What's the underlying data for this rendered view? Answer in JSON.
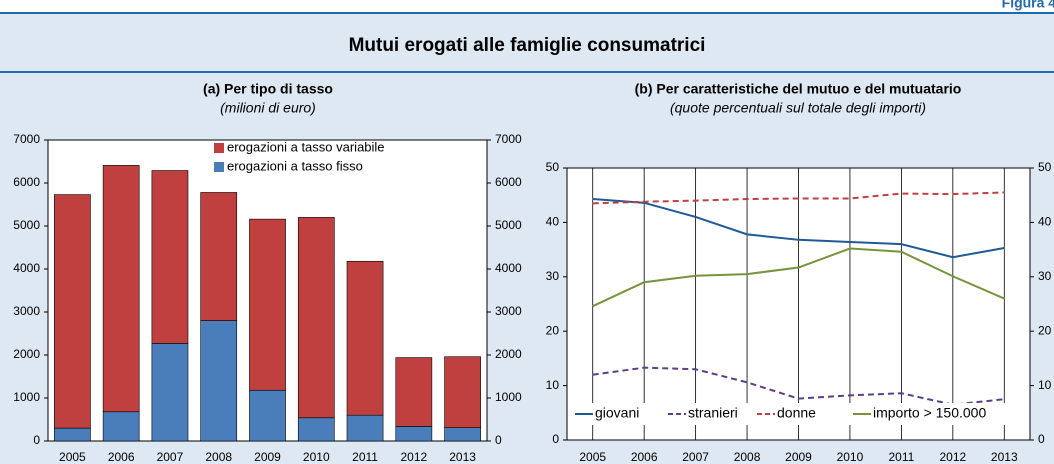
{
  "header": {
    "figure_label": "Figura 4.",
    "title": "Mutui erogati alle famiglie consumatrici"
  },
  "chart_data": [
    {
      "type": "bar",
      "stacked": true,
      "title": "(a) Per tipo di tasso",
      "subtitle": "(milioni di euro)",
      "categories": [
        "2005",
        "2006",
        "2007",
        "2008",
        "2009",
        "2010",
        "2011",
        "2012",
        "2013"
      ],
      "series": [
        {
          "name": "erogazioni a tasso variabile",
          "color": "#c0403f",
          "values": [
            5430,
            5730,
            4020,
            2980,
            3980,
            4660,
            3580,
            1600,
            1650
          ]
        },
        {
          "name": "erogazioni a tasso fisso",
          "color": "#4a7ebb",
          "values": [
            300,
            680,
            2270,
            2800,
            1180,
            540,
            600,
            340,
            310
          ]
        }
      ],
      "ylim": [
        0,
        7000
      ],
      "yticks": [
        0,
        1000,
        2000,
        3000,
        4000,
        5000,
        6000,
        7000
      ],
      "y2lim": [
        0,
        7000
      ],
      "y2ticks": [
        0,
        1000,
        2000,
        3000,
        4000,
        5000,
        6000,
        7000
      ],
      "legend": "top-right",
      "grid": false
    },
    {
      "type": "line",
      "title": "(b) Per caratteristiche del mutuo e del mutuatario",
      "subtitle": "(quote percentuali sul totale degli importi)",
      "categories": [
        "2005",
        "2006",
        "2007",
        "2008",
        "2009",
        "2010",
        "2011",
        "2012",
        "2013"
      ],
      "series": [
        {
          "name": "giovani",
          "color": "#1f5a96",
          "style": "solid",
          "values": [
            44.3,
            43.6,
            41,
            37.8,
            36.8,
            36.4,
            36,
            33.6,
            35.3
          ]
        },
        {
          "name": "stranieri",
          "color": "#5b3f8c",
          "style": "dashed",
          "values": [
            12,
            13.3,
            13,
            10.6,
            7.6,
            8.2,
            8.6,
            6.5,
            7.5
          ]
        },
        {
          "name": "donne",
          "color": "#c0403f",
          "style": "dashed",
          "values": [
            43.5,
            43.8,
            44,
            44.3,
            44.4,
            44.4,
            45.3,
            45.2,
            45.5
          ]
        },
        {
          "name": "importo > 150.000",
          "color": "#77933c",
          "style": "solid",
          "values": [
            24.6,
            29,
            30.2,
            30.5,
            31.7,
            35.2,
            34.6,
            30.1,
            26
          ]
        }
      ],
      "ylim": [
        0,
        50
      ],
      "yticks": [
        0,
        10,
        20,
        30,
        40,
        50
      ],
      "y2lim": [
        0,
        50
      ],
      "y2ticks": [
        0,
        10,
        20,
        30,
        40,
        50
      ],
      "legend": "bottom",
      "grid": true
    }
  ]
}
